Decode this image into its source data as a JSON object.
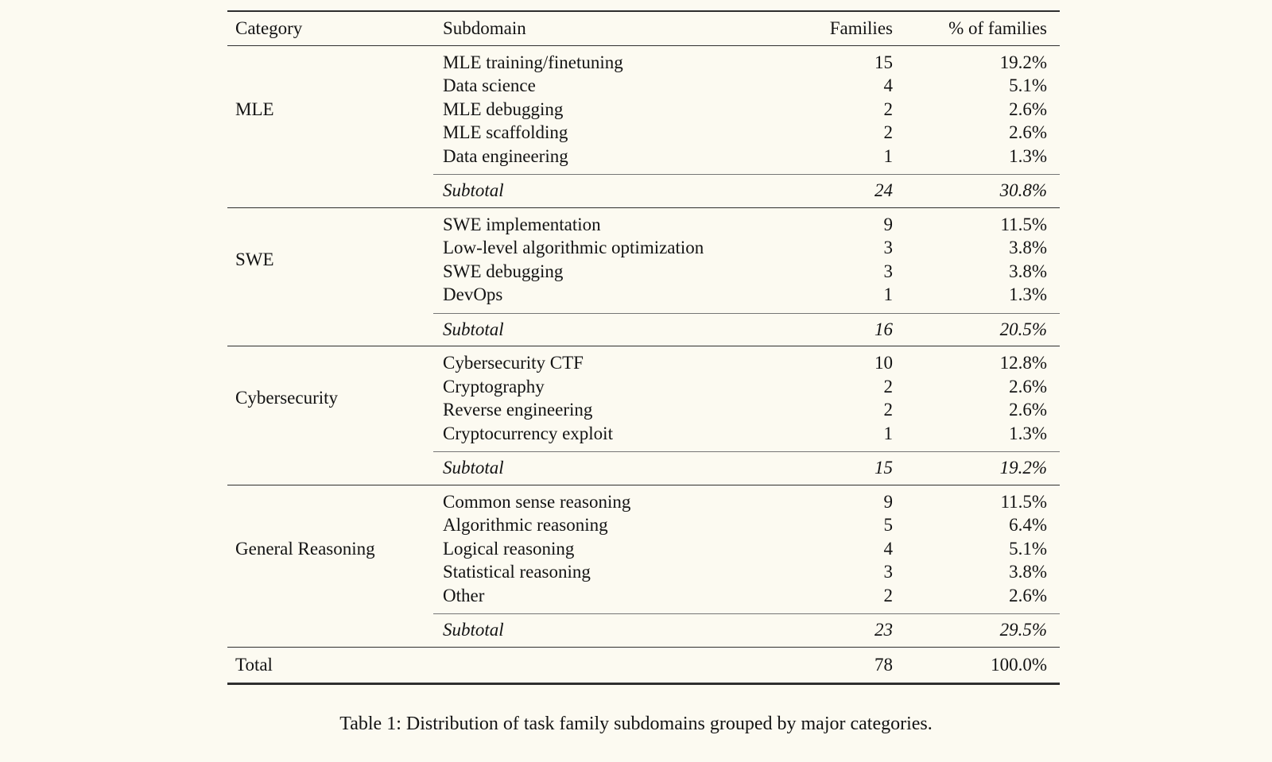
{
  "colors": {
    "background": "#fcfaf1",
    "text": "#131313",
    "rule": "#2e2e2e",
    "cmidrule": "#757575"
  },
  "table": {
    "headers": {
      "category": "Category",
      "subdomain": "Subdomain",
      "families": "Families",
      "pct": "% of families"
    },
    "sections": [
      {
        "category": "MLE",
        "rows": [
          {
            "subdomain": "MLE training/finetuning",
            "families": 15,
            "pct": "19.2%"
          },
          {
            "subdomain": "Data science",
            "families": 4,
            "pct": "5.1%"
          },
          {
            "subdomain": "MLE debugging",
            "families": 2,
            "pct": "2.6%"
          },
          {
            "subdomain": "MLE scaffolding",
            "families": 2,
            "pct": "2.6%"
          },
          {
            "subdomain": "Data engineering",
            "families": 1,
            "pct": "1.3%"
          }
        ],
        "subtotal": {
          "label": "Subtotal",
          "families": 24,
          "pct": "30.8%"
        }
      },
      {
        "category": "SWE",
        "rows": [
          {
            "subdomain": "SWE implementation",
            "families": 9,
            "pct": "11.5%"
          },
          {
            "subdomain": "Low-level algorithmic optimization",
            "families": 3,
            "pct": "3.8%"
          },
          {
            "subdomain": "SWE debugging",
            "families": 3,
            "pct": "3.8%"
          },
          {
            "subdomain": "DevOps",
            "families": 1,
            "pct": "1.3%"
          }
        ],
        "subtotal": {
          "label": "Subtotal",
          "families": 16,
          "pct": "20.5%"
        }
      },
      {
        "category": "Cybersecurity",
        "rows": [
          {
            "subdomain": "Cybersecurity CTF",
            "families": 10,
            "pct": "12.8%"
          },
          {
            "subdomain": "Cryptography",
            "families": 2,
            "pct": "2.6%"
          },
          {
            "subdomain": "Reverse engineering",
            "families": 2,
            "pct": "2.6%"
          },
          {
            "subdomain": "Cryptocurrency exploit",
            "families": 1,
            "pct": "1.3%"
          }
        ],
        "subtotal": {
          "label": "Subtotal",
          "families": 15,
          "pct": "19.2%"
        }
      },
      {
        "category": "General Reasoning",
        "rows": [
          {
            "subdomain": "Common sense reasoning",
            "families": 9,
            "pct": "11.5%"
          },
          {
            "subdomain": "Algorithmic reasoning",
            "families": 5,
            "pct": "6.4%"
          },
          {
            "subdomain": "Logical reasoning",
            "families": 4,
            "pct": "5.1%"
          },
          {
            "subdomain": "Statistical reasoning",
            "families": 3,
            "pct": "3.8%"
          },
          {
            "subdomain": "Other",
            "families": 2,
            "pct": "2.6%"
          }
        ],
        "subtotal": {
          "label": "Subtotal",
          "families": 23,
          "pct": "29.5%"
        }
      }
    ],
    "total": {
      "label": "Total",
      "families": 78,
      "pct": "100.0%"
    }
  },
  "caption": "Table 1: Distribution of task family subdomains grouped by major categories."
}
